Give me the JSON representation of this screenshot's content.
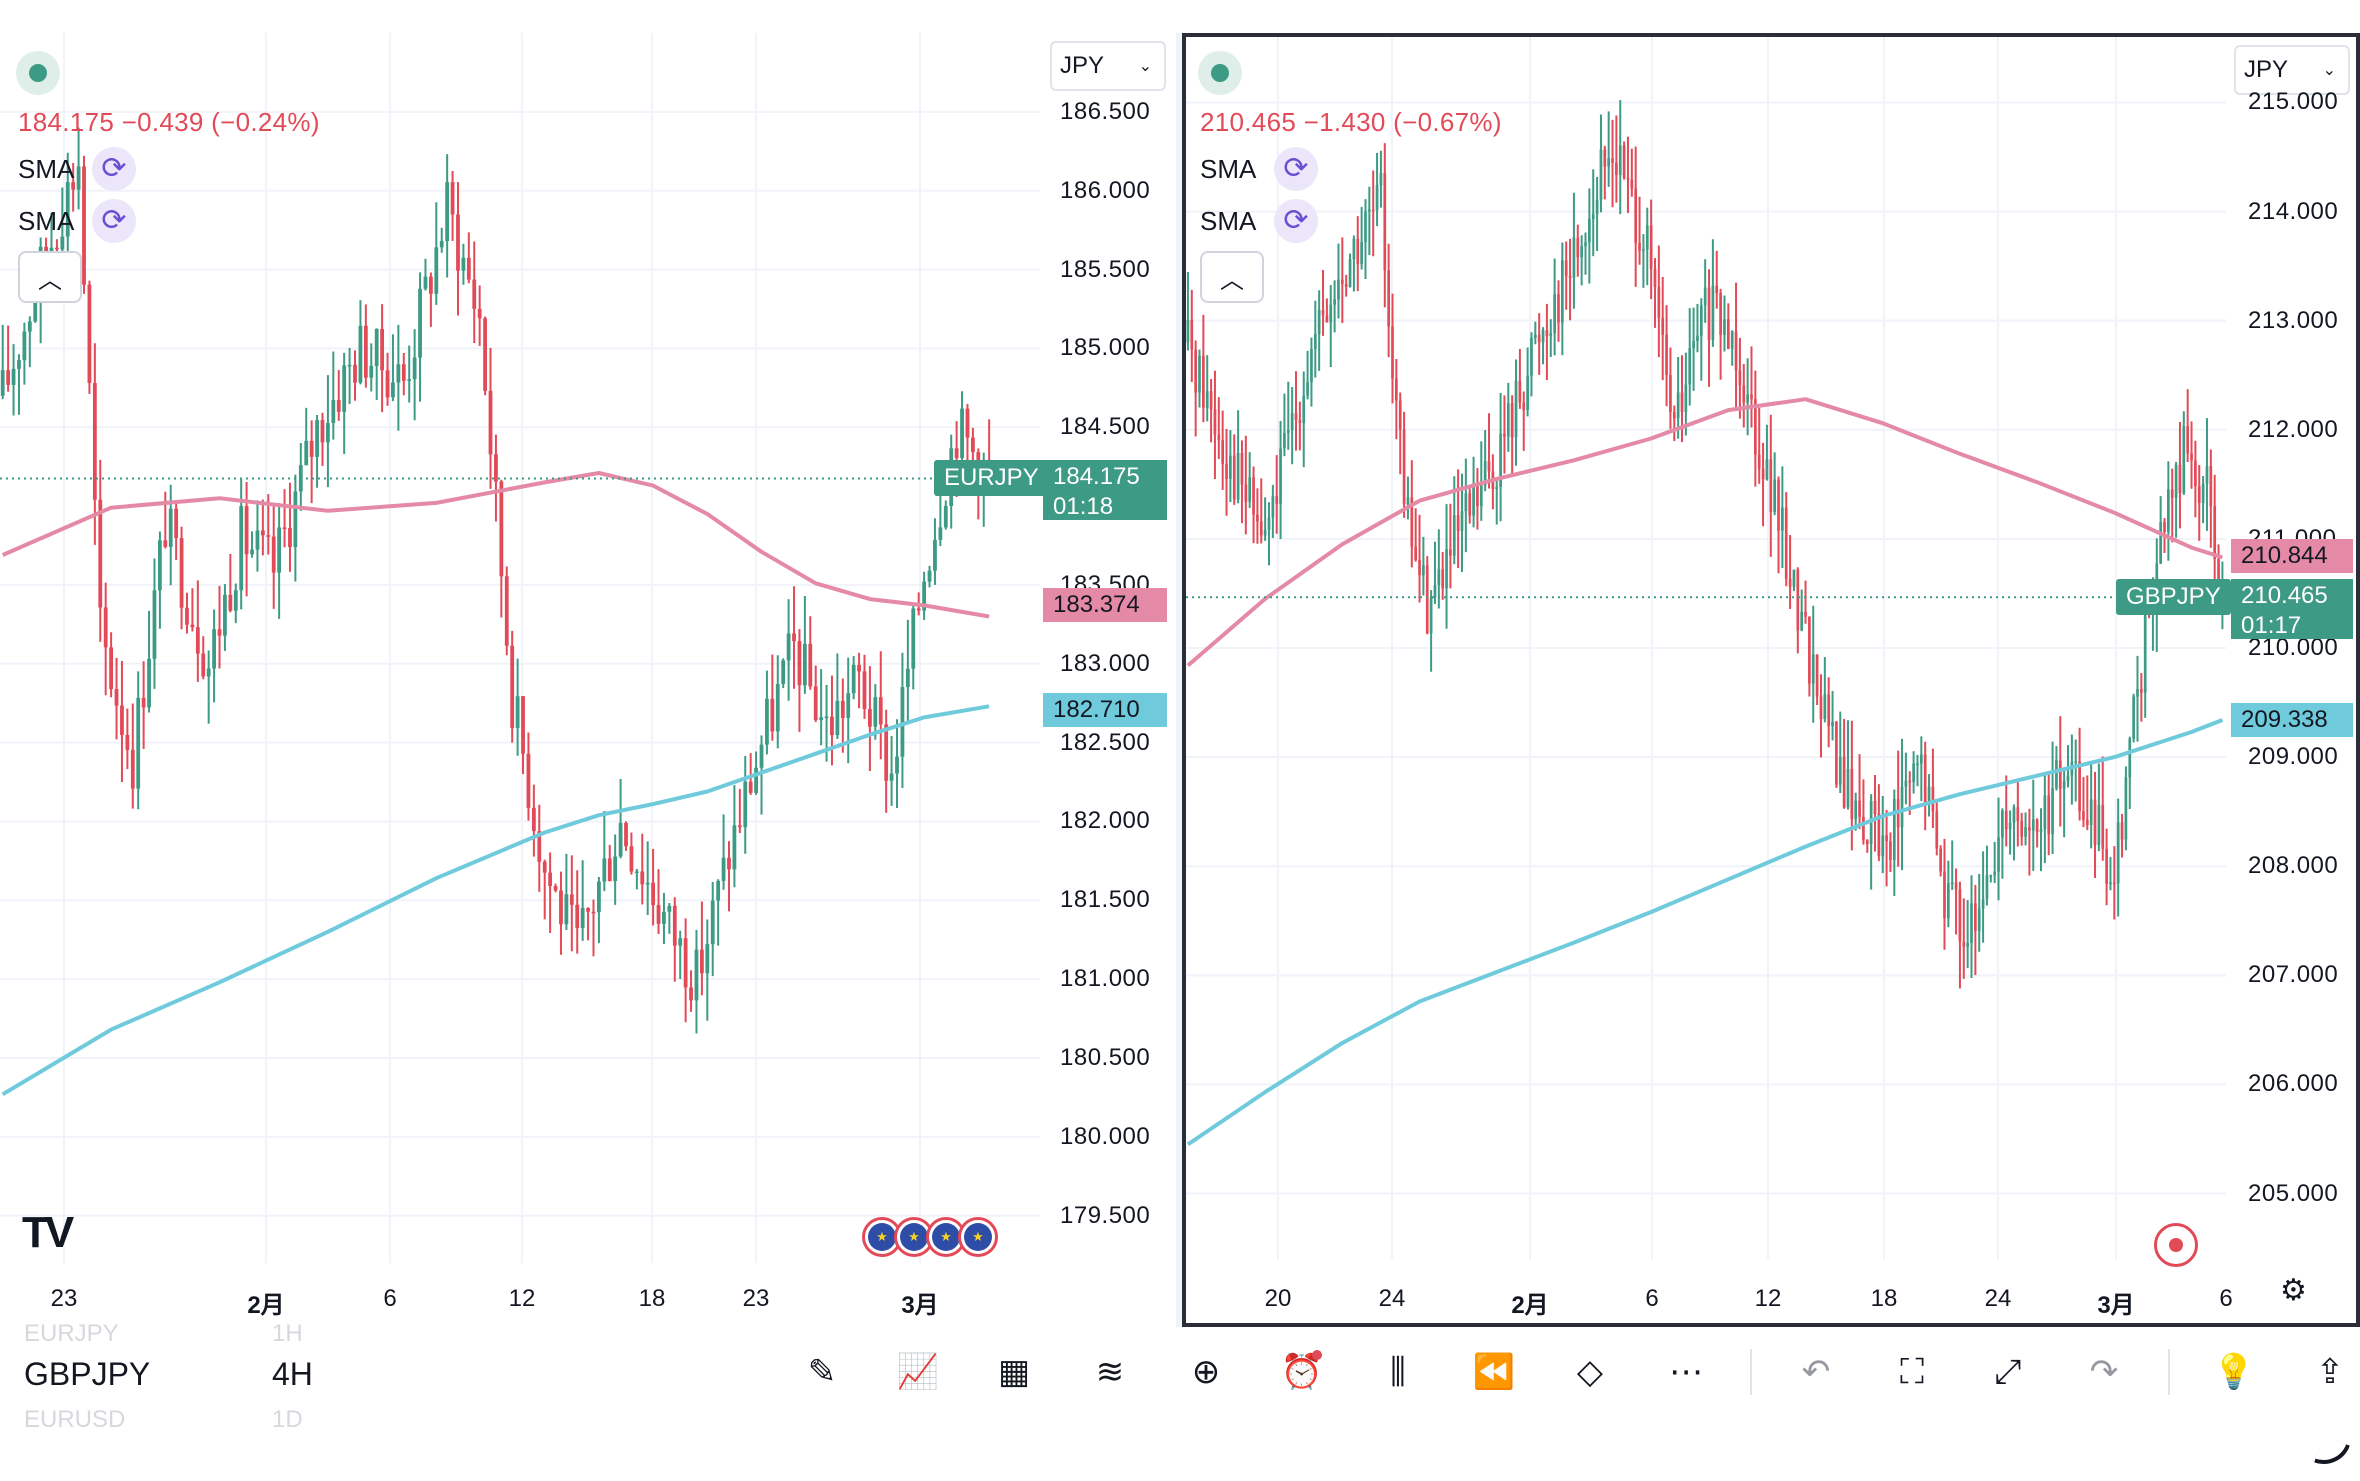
{
  "charts": [
    {
      "id": "left",
      "symbol": "EURJPY",
      "quote": "184.175 −0.439 (−0.24%)",
      "indicators": [
        {
          "name": "SMA"
        },
        {
          "name": "SMA"
        }
      ],
      "currency": "JPY",
      "price_axis": [
        "186.500",
        "186.000",
        "185.500",
        "185.000",
        "184.500",
        "183.500",
        "183.000",
        "182.500",
        "182.000",
        "181.500",
        "181.000",
        "180.500",
        "180.000",
        "179.500"
      ],
      "time_axis": [
        {
          "label": "23",
          "bold": false
        },
        {
          "label": "2月",
          "bold": true
        },
        {
          "label": "6",
          "bold": false
        },
        {
          "label": "12",
          "bold": false
        },
        {
          "label": "18",
          "bold": false
        },
        {
          "label": "23",
          "bold": false
        },
        {
          "label": "3月",
          "bold": true
        }
      ],
      "last_price": "184.175",
      "countdown": "01:18",
      "sma_fast_value": "183.374",
      "sma_slow_value": "182.710",
      "ylim": [
        179.2,
        187.0
      ],
      "trend_points": [
        [
          0,
          184.7
        ],
        [
          8,
          185.6
        ],
        [
          14,
          186.2
        ],
        [
          18,
          183.2
        ],
        [
          24,
          182.4
        ],
        [
          30,
          183.9
        ],
        [
          38,
          183.0
        ],
        [
          44,
          183.8
        ],
        [
          50,
          183.6
        ],
        [
          58,
          184.5
        ],
        [
          66,
          185.0
        ],
        [
          74,
          184.8
        ],
        [
          82,
          185.9
        ],
        [
          88,
          185.2
        ],
        [
          94,
          182.8
        ],
        [
          100,
          181.7
        ],
        [
          106,
          181.2
        ],
        [
          114,
          182.0
        ],
        [
          122,
          181.4
        ],
        [
          128,
          181.0
        ],
        [
          134,
          181.8
        ],
        [
          140,
          182.5
        ],
        [
          146,
          183.1
        ],
        [
          152,
          182.6
        ],
        [
          158,
          182.9
        ],
        [
          164,
          182.3
        ],
        [
          170,
          183.6
        ],
        [
          176,
          184.5
        ],
        [
          182,
          184.2
        ]
      ],
      "sma_fast_points": [
        [
          0,
          183.69
        ],
        [
          20,
          183.99
        ],
        [
          40,
          184.05
        ],
        [
          60,
          183.97
        ],
        [
          80,
          184.02
        ],
        [
          100,
          184.15
        ],
        [
          110,
          184.21
        ],
        [
          120,
          184.13
        ],
        [
          130,
          183.95
        ],
        [
          140,
          183.71
        ],
        [
          150,
          183.51
        ],
        [
          160,
          183.41
        ],
        [
          170,
          183.37
        ],
        [
          182,
          183.3
        ]
      ],
      "sma_slow_points": [
        [
          0,
          180.27
        ],
        [
          20,
          180.68
        ],
        [
          40,
          180.98
        ],
        [
          60,
          181.3
        ],
        [
          80,
          181.64
        ],
        [
          100,
          181.93
        ],
        [
          110,
          182.04
        ],
        [
          120,
          182.11
        ],
        [
          130,
          182.19
        ],
        [
          140,
          182.31
        ],
        [
          150,
          182.43
        ],
        [
          160,
          182.55
        ],
        [
          170,
          182.66
        ],
        [
          182,
          182.73
        ]
      ]
    },
    {
      "id": "right",
      "symbol": "GBPJPY",
      "quote": "210.465 −1.430 (−0.67%)",
      "indicators": [
        {
          "name": "SMA"
        },
        {
          "name": "SMA"
        }
      ],
      "currency": "JPY",
      "price_axis": [
        "215.000",
        "214.000",
        "213.000",
        "212.000",
        "211.000",
        "210.000",
        "209.000",
        "208.000",
        "207.000",
        "206.000",
        "205.000"
      ],
      "time_axis": [
        {
          "label": "20",
          "bold": false
        },
        {
          "label": "24",
          "bold": false
        },
        {
          "label": "2月",
          "bold": true
        },
        {
          "label": "6",
          "bold": false
        },
        {
          "label": "12",
          "bold": false
        },
        {
          "label": "18",
          "bold": false
        },
        {
          "label": "24",
          "bold": false
        },
        {
          "label": "3月",
          "bold": true
        },
        {
          "label": "6",
          "bold": false
        }
      ],
      "last_price": "210.465",
      "countdown": "01:17",
      "sma_fast_value": "210.844",
      "sma_slow_value": "209.338",
      "ylim": [
        204.4,
        215.6
      ],
      "trend_points": [
        [
          0,
          212.8
        ],
        [
          10,
          211.8
        ],
        [
          20,
          211.0
        ],
        [
          30,
          212.5
        ],
        [
          40,
          213.4
        ],
        [
          50,
          214.1
        ],
        [
          56,
          211.3
        ],
        [
          62,
          210.4
        ],
        [
          70,
          211.0
        ],
        [
          80,
          211.7
        ],
        [
          90,
          212.8
        ],
        [
          100,
          213.6
        ],
        [
          110,
          214.6
        ],
        [
          118,
          213.8
        ],
        [
          126,
          212.0
        ],
        [
          134,
          213.1
        ],
        [
          142,
          212.8
        ],
        [
          150,
          211.6
        ],
        [
          156,
          210.7
        ],
        [
          162,
          209.8
        ],
        [
          170,
          208.7
        ],
        [
          180,
          208.2
        ],
        [
          190,
          208.9
        ],
        [
          196,
          207.8
        ],
        [
          204,
          207.3
        ],
        [
          212,
          208.6
        ],
        [
          220,
          208.3
        ],
        [
          228,
          208.9
        ],
        [
          234,
          208.4
        ],
        [
          240,
          208.0
        ],
        [
          246,
          209.6
        ],
        [
          252,
          211.0
        ],
        [
          258,
          211.8
        ],
        [
          264,
          211.4
        ],
        [
          268,
          210.5
        ]
      ],
      "sma_fast_points": [
        [
          0,
          209.84
        ],
        [
          20,
          210.45
        ],
        [
          40,
          210.95
        ],
        [
          60,
          211.35
        ],
        [
          80,
          211.55
        ],
        [
          100,
          211.72
        ],
        [
          120,
          211.92
        ],
        [
          140,
          212.18
        ],
        [
          160,
          212.28
        ],
        [
          180,
          212.06
        ],
        [
          200,
          211.78
        ],
        [
          220,
          211.52
        ],
        [
          240,
          211.24
        ],
        [
          260,
          210.92
        ],
        [
          268,
          210.83
        ]
      ],
      "sma_slow_points": [
        [
          0,
          205.45
        ],
        [
          20,
          205.93
        ],
        [
          40,
          206.38
        ],
        [
          60,
          206.76
        ],
        [
          80,
          207.03
        ],
        [
          100,
          207.3
        ],
        [
          120,
          207.58
        ],
        [
          140,
          207.88
        ],
        [
          160,
          208.18
        ],
        [
          180,
          208.46
        ],
        [
          200,
          208.66
        ],
        [
          220,
          208.83
        ],
        [
          240,
          209.0
        ],
        [
          260,
          209.23
        ],
        [
          268,
          209.34
        ]
      ]
    }
  ],
  "watchlist": [
    {
      "symbol": "EURJPY",
      "interval": "1H",
      "state": "faded"
    },
    {
      "symbol": "GBPJPY",
      "interval": "4H",
      "state": "current"
    },
    {
      "symbol": "EURUSD",
      "interval": "1D",
      "state": "faded"
    }
  ],
  "toolbar": [
    {
      "name": "draw-tool-button",
      "icon": "✎",
      "enabled": true
    },
    {
      "name": "indicators-button",
      "icon": "📈",
      "enabled": true
    },
    {
      "name": "layouts-button",
      "icon": "▦",
      "enabled": true
    },
    {
      "name": "compare-button",
      "icon": "≋",
      "enabled": true
    },
    {
      "name": "add-symbol-button",
      "icon": "⊕",
      "enabled": true
    },
    {
      "name": "alert-button",
      "icon": "⏰",
      "enabled": true,
      "badge": true
    },
    {
      "name": "chart-type-button",
      "icon": "⫼",
      "enabled": true
    },
    {
      "name": "replay-button",
      "icon": "⏪",
      "enabled": true
    },
    {
      "name": "objects-tree-button",
      "icon": "◇",
      "enabled": true
    },
    {
      "name": "more-button",
      "icon": "⋯",
      "enabled": true
    },
    {
      "sep": true
    },
    {
      "name": "undo-button",
      "icon": "↶",
      "enabled": false
    },
    {
      "name": "screenshot-button",
      "icon": "⛶",
      "enabled": true
    },
    {
      "name": "fullscreen-button",
      "icon": "⤢",
      "enabled": true
    },
    {
      "name": "redo-button",
      "icon": "↷",
      "enabled": false
    },
    {
      "sep": true
    },
    {
      "name": "ideas-button",
      "icon": "💡",
      "enabled": true
    },
    {
      "name": "share-button",
      "icon": "⇪",
      "enabled": true
    }
  ],
  "colors": {
    "up": "#3d9a84",
    "down": "#e24a58",
    "sma_fast": "#e48aa6",
    "sma_slow": "#6fcbdc",
    "last_price_line": "#3d9a84",
    "grid": "#f0f3fa"
  }
}
